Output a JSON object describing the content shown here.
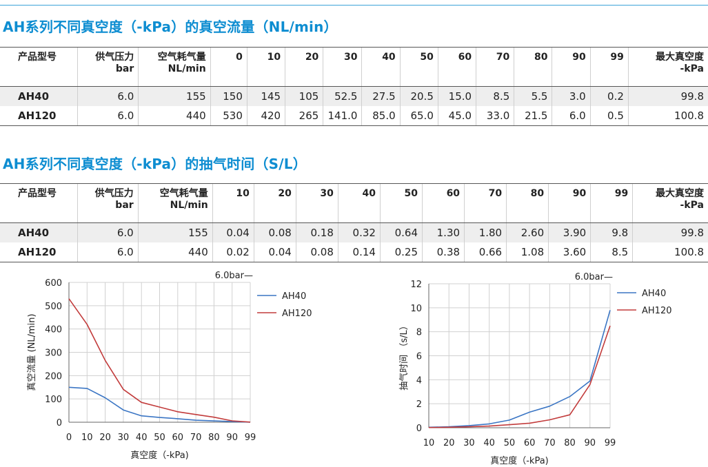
{
  "flow_section": {
    "title": "AH系列不同真空度（-kPa）的真空流量（NL/min）",
    "headers": {
      "model": "产品型号",
      "pressure": [
        "供气压力",
        "bar"
      ],
      "consumption": [
        "空气耗气量",
        "NL/min"
      ],
      "levels": [
        "0",
        "10",
        "20",
        "30",
        "40",
        "50",
        "60",
        "70",
        "80",
        "90",
        "99"
      ],
      "max": [
        "最大真空度",
        "-kPa"
      ]
    },
    "rows": [
      {
        "model": "AH40",
        "pressure": "6.0",
        "consumption": "155",
        "values": [
          "150",
          "145",
          "105",
          "52.5",
          "27.5",
          "20.5",
          "15.0",
          "8.5",
          "5.5",
          "3.0",
          "0.2"
        ],
        "max": "99.8"
      },
      {
        "model": "AH120",
        "pressure": "6.0",
        "consumption": "440",
        "values": [
          "530",
          "420",
          "265",
          "141.0",
          "85.0",
          "65.0",
          "45.0",
          "33.0",
          "21.5",
          "6.0",
          "0.5"
        ],
        "max": "100.8"
      }
    ]
  },
  "time_section": {
    "title": "AH系列不同真空度（-kPa）的抽气时间（S/L）",
    "headers": {
      "model": "产品型号",
      "pressure": [
        "供气压力",
        "bar"
      ],
      "consumption": [
        "空气耗气量",
        "NL/min"
      ],
      "levels": [
        "10",
        "20",
        "30",
        "40",
        "50",
        "60",
        "70",
        "80",
        "90",
        "99"
      ],
      "max": [
        "最大真空度",
        "-kPa"
      ]
    },
    "rows": [
      {
        "model": "AH40",
        "pressure": "6.0",
        "consumption": "155",
        "values": [
          "0.04",
          "0.08",
          "0.18",
          "0.32",
          "0.64",
          "1.30",
          "1.80",
          "2.60",
          "3.90",
          "9.8"
        ],
        "max": "99.8"
      },
      {
        "model": "AH120",
        "pressure": "6.0",
        "consumption": "440",
        "values": [
          "0.02",
          "0.04",
          "0.08",
          "0.14",
          "0.25",
          "0.38",
          "0.66",
          "1.08",
          "3.60",
          "8.5"
        ],
        "max": "100.8"
      }
    ]
  },
  "colors": {
    "title": "#0d8dd1",
    "ah40": "#3a75c4",
    "ah120": "#c23b3b"
  },
  "chart_data": [
    {
      "type": "line",
      "title": "6.0bar—",
      "xlabel": "真空度（-kPa)",
      "ylabel": "真空流量 (NL/min)",
      "categories": [
        "0",
        "10",
        "20",
        "30",
        "40",
        "50",
        "60",
        "70",
        "80",
        "90",
        "99"
      ],
      "ylim": [
        0,
        600
      ],
      "yticks": [
        "0",
        "100",
        "200",
        "300",
        "400",
        "500",
        "600"
      ],
      "grid": true,
      "legend": "right",
      "series": [
        {
          "name": "AH40",
          "values": [
            150,
            145,
            105,
            52.5,
            27.5,
            20.5,
            15.0,
            8.5,
            5.5,
            3.0,
            0.2
          ]
        },
        {
          "name": "AH120",
          "values": [
            530,
            420,
            265,
            141,
            85,
            65,
            45,
            33,
            21.5,
            6,
            0.5
          ]
        }
      ]
    },
    {
      "type": "line",
      "title": "6.0bar—",
      "xlabel": "真空度（-kPa)",
      "ylabel": "抽气时间 （s/L）",
      "categories": [
        "10",
        "20",
        "30",
        "40",
        "50",
        "60",
        "70",
        "80",
        "90",
        "99"
      ],
      "ylim": [
        0,
        12
      ],
      "yticks": [
        "0",
        "2",
        "4",
        "6",
        "8",
        "10",
        "12"
      ],
      "grid": true,
      "legend": "right",
      "series": [
        {
          "name": "AH40",
          "values": [
            0.04,
            0.08,
            0.18,
            0.32,
            0.64,
            1.3,
            1.8,
            2.6,
            3.9,
            9.8
          ]
        },
        {
          "name": "AH120",
          "values": [
            0.02,
            0.04,
            0.08,
            0.14,
            0.25,
            0.38,
            0.66,
            1.08,
            3.6,
            8.5
          ]
        }
      ]
    }
  ]
}
